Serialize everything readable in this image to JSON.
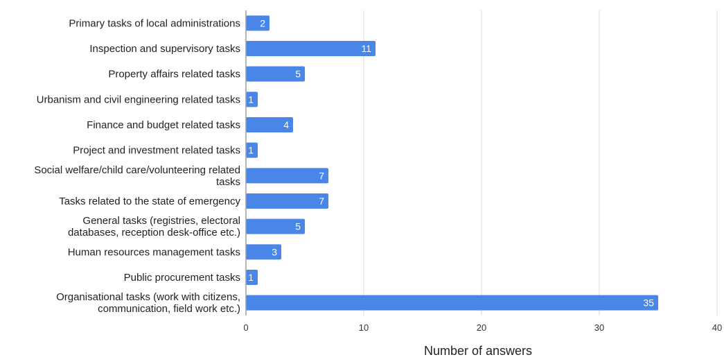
{
  "chart_data": {
    "type": "bar",
    "orientation": "horizontal",
    "categories": [
      [
        "Primary tasks of local administrations"
      ],
      [
        "Inspection and supervisory tasks"
      ],
      [
        "Property affairs related tasks"
      ],
      [
        "Urbanism and civil engineering related tasks"
      ],
      [
        "Finance and budget related tasks"
      ],
      [
        "Project and investment related tasks"
      ],
      [
        "Social welfare/child care/volunteering related",
        "tasks"
      ],
      [
        "Tasks related to the state of emergency"
      ],
      [
        "General tasks (registries, electoral",
        "databases, reception desk-office etc.)"
      ],
      [
        "Human resources management tasks"
      ],
      [
        "Public procurement tasks"
      ],
      [
        "Organisational tasks (work with citizens,",
        "communication, field work etc.)"
      ]
    ],
    "values": [
      2,
      11,
      5,
      1,
      4,
      1,
      7,
      7,
      5,
      3,
      1,
      35
    ],
    "xlabel": "Number of answers",
    "ylabel": "",
    "xlim": [
      0,
      40
    ],
    "xticks": [
      0,
      10,
      20,
      30,
      40
    ],
    "grid": "vertical",
    "data_labels": true,
    "bar_color": "#4a86e8",
    "grid_color": "#d9d9d9",
    "axis_color": "#9e9e9e"
  }
}
